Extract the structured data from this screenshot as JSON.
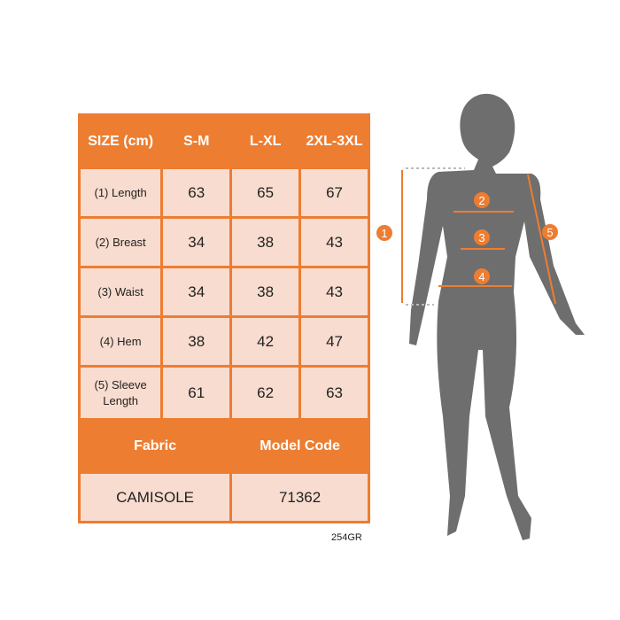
{
  "table": {
    "header": [
      "SIZE (cm)",
      "S-M",
      "L-XL",
      "2XL-3XL"
    ],
    "rows": [
      {
        "label": "(1) Length",
        "values": [
          "63",
          "65",
          "67"
        ]
      },
      {
        "label": "(2) Breast",
        "values": [
          "34",
          "38",
          "43"
        ]
      },
      {
        "label": "(3) Waist",
        "values": [
          "34",
          "38",
          "43"
        ]
      },
      {
        "label": "(4) Hem",
        "values": [
          "38",
          "42",
          "47"
        ]
      },
      {
        "label": "(5) Sleeve Length",
        "values": [
          "61",
          "62",
          "63"
        ]
      }
    ],
    "fabric_header": "Fabric",
    "model_header": "Model Code",
    "fabric": "CAMISOLE",
    "model_code": "71362"
  },
  "product_code": "254GR",
  "markers": [
    "1",
    "2",
    "3",
    "4",
    "5"
  ],
  "colors": {
    "accent": "#ED7D31",
    "cell": "#F8DCCF",
    "silhouette": "#6E6E6E"
  }
}
